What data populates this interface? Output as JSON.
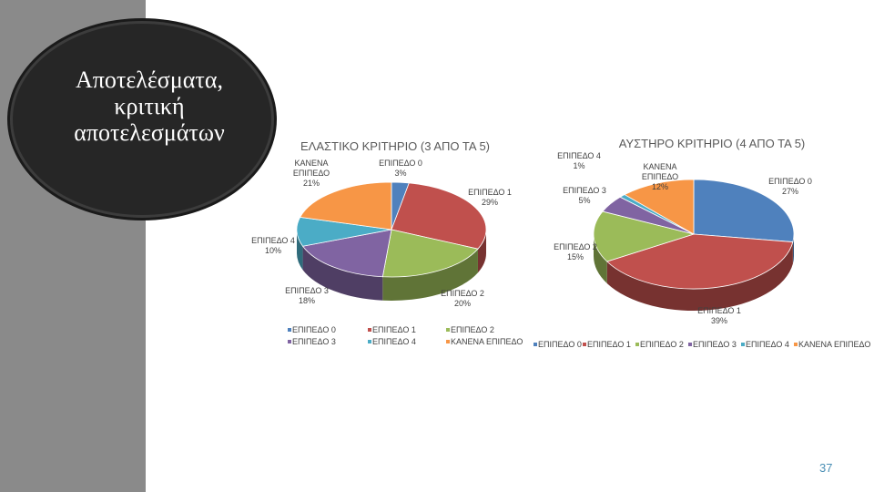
{
  "slide": {
    "title": "Αποτελέσματα, κριτική αποτελεσμάτων",
    "page_number": "37"
  },
  "colors": {
    "sidebar": "#8a8a8a",
    "circle": "#262626",
    "ΕΠΙΠΕΔΟ 0": "#4f81bd",
    "ΕΠΙΠΕΔΟ 1": "#c0504d",
    "ΕΠΙΠΕΔΟ 2": "#9bbb59",
    "ΕΠΙΠΕΔΟ 3": "#8064a2",
    "ΕΠΙΠΕΔΟ 4": "#4bacc6",
    "ΚΑΝΕΝΑ ΕΠΙΠΕΔΟ": "#f79646"
  },
  "chart_data": [
    {
      "type": "pie",
      "title": "ΕΛΑΣΤΙΚΟ ΚΡΙΤΗΡΙΟ (3 ΑΠΟ ΤΑ 5)",
      "categories": [
        "ΕΠΙΠΕΔΟ 0",
        "ΕΠΙΠΕΔΟ 1",
        "ΕΠΙΠΕΔΟ 2",
        "ΕΠΙΠΕΔΟ 3",
        "ΕΠΙΠΕΔΟ 4",
        "ΚΑΝΕΝΑ ΕΠΙΠΕΔΟ"
      ],
      "values": [
        3,
        29,
        20,
        18,
        10,
        21
      ],
      "data_labels": [
        [
          "ΕΠΙΠΕΔΟ 0",
          "3%"
        ],
        [
          "ΕΠΙΠΕΔΟ 1",
          "29%"
        ],
        [
          "ΕΠΙΠΕΔΟ 2",
          "20%"
        ],
        [
          "ΕΠΙΠΕΔΟ 3",
          "18%"
        ],
        [
          "ΕΠΙΠΕΔΟ 4",
          "10%"
        ],
        [
          "ΚΑΝΕΝΑ",
          "ΕΠΙΠΕΔΟ",
          "21%"
        ]
      ],
      "legend": "bottom"
    },
    {
      "type": "pie",
      "title": "ΑΥΣΤΗΡΟ ΚΡΙΤΗΡΙΟ (4 ΑΠΟ ΤΑ 5)",
      "categories": [
        "ΕΠΙΠΕΔΟ 0",
        "ΕΠΙΠΕΔΟ 1",
        "ΕΠΙΠΕΔΟ 2",
        "ΕΠΙΠΕΔΟ 3",
        "ΕΠΙΠΕΔΟ 4",
        "ΚΑΝΕΝΑ ΕΠΙΠΕΔΟ"
      ],
      "values": [
        27,
        39,
        15,
        5,
        1,
        12
      ],
      "data_labels": [
        [
          "ΕΠΙΠΕΔΟ 0",
          "27%"
        ],
        [
          "ΕΠΙΠΕΔΟ 1",
          "39%"
        ],
        [
          "ΕΠΙΠΕΔΟ 2",
          "15%"
        ],
        [
          "ΕΠΙΠΕΔΟ 3",
          "5%"
        ],
        [
          "ΕΠΙΠΕΔΟ 4",
          "1%"
        ],
        [
          "ΚΑΝΕΝΑ",
          "ΕΠΙΠΕΔΟ",
          "12%"
        ]
      ],
      "legend": "bottom"
    }
  ]
}
